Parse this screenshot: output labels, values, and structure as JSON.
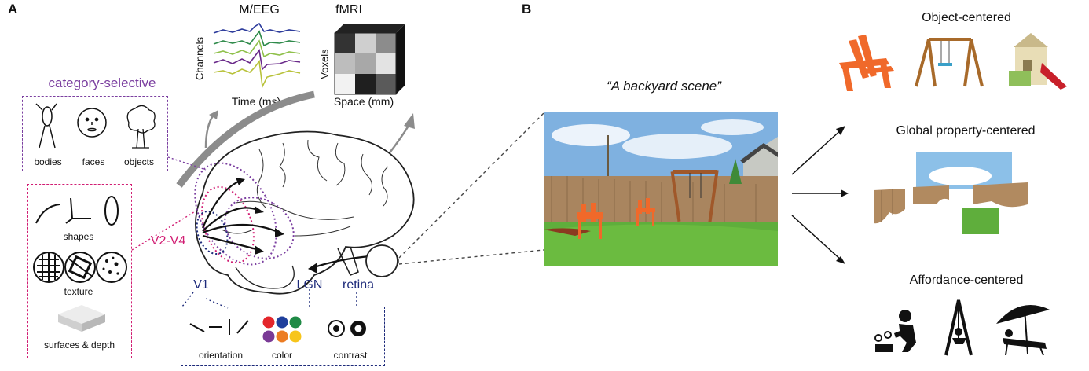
{
  "panels": {
    "a": "A",
    "b": "B"
  },
  "measures": {
    "meeg_title": "M/EEG",
    "meeg_ylabel": "Channels",
    "meeg_xlabel": "Time (ms)",
    "fmri_title": "fMRI",
    "fmri_ylabel": "Voxels",
    "fmri_xlabel": "Space (mm)"
  },
  "category_selective": {
    "title": "category-selective",
    "items": [
      "bodies",
      "faces",
      "objects"
    ]
  },
  "mid_level": {
    "items": [
      "shapes",
      "texture",
      "surfaces & depth"
    ]
  },
  "low_level": {
    "items": [
      "orientation",
      "color",
      "contrast"
    ]
  },
  "regions": {
    "v2v4": "V2-V4",
    "v1": "V1",
    "lgn": "LGN",
    "retina": "retina"
  },
  "scene": {
    "caption": "“A backyard scene”"
  },
  "representations": {
    "object": "Object-centered",
    "global": "Global property-centered",
    "affordance": "Affordance-centered"
  },
  "colors": {
    "purple": "#7b3fa0",
    "pink": "#d11d73",
    "navy": "#1d2a7a"
  }
}
